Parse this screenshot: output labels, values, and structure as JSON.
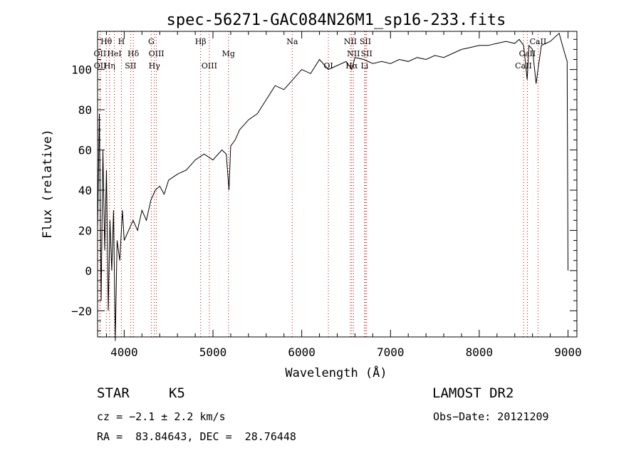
{
  "chart_data": {
    "type": "line",
    "title": "spec-56271-GAC084N26M1_sp16-233.fits",
    "xlabel": "Wavelength (Å)",
    "ylabel": "Flux (relative)",
    "xlim": [
      3700,
      9100
    ],
    "ylim": [
      -33,
      119
    ],
    "xticks": [
      4000,
      5000,
      6000,
      7000,
      8000,
      9000
    ],
    "xtick_labels": [
      "4000",
      "5000",
      "6000",
      "7000",
      "8000",
      "9000"
    ],
    "yticks": [
      -20,
      0,
      20,
      40,
      60,
      80,
      100
    ],
    "ytick_labels": [
      "−20",
      "0",
      "20",
      "40",
      "60",
      "80",
      "100"
    ],
    "grid": false,
    "series": [
      {
        "x": [
          3700,
          3720,
          3740,
          3760,
          3780,
          3800,
          3820,
          3840,
          3860,
          3880,
          3900,
          3920,
          3950,
          3980,
          4000,
          4050,
          4100,
          4150,
          4200,
          4250,
          4300,
          4350,
          4400,
          4450,
          4500,
          4600,
          4700,
          4800,
          4900,
          5000,
          5100,
          5150,
          5180,
          5200,
          5250,
          5300,
          5400,
          5500,
          5600,
          5700,
          5800,
          5900,
          6000,
          6100,
          6200,
          6300,
          6400,
          6500,
          6563,
          6600,
          6700,
          6800,
          6900,
          7000,
          7100,
          7200,
          7300,
          7400,
          7500,
          7600,
          7700,
          7800,
          7900,
          8000,
          8100,
          8200,
          8300,
          8400,
          8450,
          8500,
          8540,
          8560,
          8600,
          8640,
          8662,
          8700,
          8800,
          8900,
          8950,
          8990,
          9000
        ],
        "y": [
          20,
          78,
          -15,
          60,
          10,
          50,
          -20,
          25,
          0,
          30,
          -35,
          15,
          5,
          30,
          15,
          20,
          25,
          20,
          30,
          25,
          35,
          40,
          42,
          38,
          45,
          48,
          50,
          55,
          58,
          55,
          60,
          58,
          40,
          62,
          65,
          70,
          75,
          78,
          85,
          92,
          90,
          95,
          100,
          98,
          105,
          100,
          102,
          104,
          100,
          106,
          105,
          103,
          104,
          103,
          105,
          104,
          106,
          105,
          107,
          106,
          108,
          110,
          111,
          112,
          112,
          113,
          114,
          113,
          115,
          112,
          95,
          112,
          110,
          93,
          100,
          112,
          114,
          118,
          110,
          104,
          0
        ]
      }
    ],
    "line_markers": [
      {
        "label": "Hθ",
        "x": 3798,
        "row": 0
      },
      {
        "label": "H",
        "x": 3968,
        "row": 0
      },
      {
        "label": "G",
        "x": 4305,
        "row": 0
      },
      {
        "label": "Hβ",
        "x": 4861,
        "row": 0
      },
      {
        "label": "Na",
        "x": 5893,
        "row": 0
      },
      {
        "label": "NII",
        "x": 6548,
        "row": 0
      },
      {
        "label": "SII",
        "x": 6717,
        "row": 0
      },
      {
        "label": "CaII",
        "x": 8662,
        "row": 0
      },
      {
        "label": "OII",
        "x": 3727,
        "row": 1
      },
      {
        "label": "HeI",
        "x": 3889,
        "row": 1
      },
      {
        "label": "Hδ",
        "x": 4102,
        "row": 1
      },
      {
        "label": "OIII",
        "x": 4363,
        "row": 1
      },
      {
        "label": "Mg",
        "x": 5175,
        "row": 1
      },
      {
        "label": "NII",
        "x": 6583,
        "row": 1
      },
      {
        "label": "SII",
        "x": 6731,
        "row": 1
      },
      {
        "label": "CaII",
        "x": 8542,
        "row": 1
      },
      {
        "label": "OII",
        "x": 3729,
        "row": 2
      },
      {
        "label": "Hη",
        "x": 3835,
        "row": 2
      },
      {
        "label": "SII",
        "x": 4072,
        "row": 2
      },
      {
        "label": "Hγ",
        "x": 4340,
        "row": 2
      },
      {
        "label": "OIII",
        "x": 4959,
        "row": 2
      },
      {
        "label": "OI",
        "x": 6300,
        "row": 2
      },
      {
        "label": "Hα",
        "x": 6563,
        "row": 2
      },
      {
        "label": "Li",
        "x": 6708,
        "row": 2
      },
      {
        "label": "CaII",
        "x": 8498,
        "row": 2
      }
    ],
    "marker_color": "#cc0000"
  },
  "info": {
    "class_label": "STAR",
    "subclass": "K5",
    "survey": "LAMOST DR2",
    "cz": "cz = −2.1 ± 2.2 km/s",
    "obs_date": "Obs−Date: 20121209",
    "coords": "RA =  83.84643, DEC =  28.76448"
  }
}
